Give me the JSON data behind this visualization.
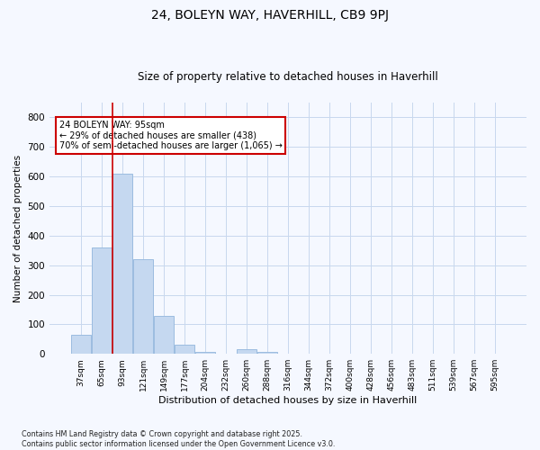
{
  "title": "24, BOLEYN WAY, HAVERHILL, CB9 9PJ",
  "subtitle": "Size of property relative to detached houses in Haverhill",
  "xlabel": "Distribution of detached houses by size in Haverhill",
  "ylabel": "Number of detached properties",
  "bar_color": "#c5d8f0",
  "bar_edge_color": "#9bbce0",
  "grid_color": "#c8d8ee",
  "background_color": "#f5f8ff",
  "plot_bg_color": "#f5f8ff",
  "vline_color": "#cc0000",
  "vline_x": 1.5,
  "categories": [
    "37sqm",
    "65sqm",
    "93sqm",
    "121sqm",
    "149sqm",
    "177sqm",
    "204sqm",
    "232sqm",
    "260sqm",
    "288sqm",
    "316sqm",
    "344sqm",
    "372sqm",
    "400sqm",
    "428sqm",
    "456sqm",
    "483sqm",
    "511sqm",
    "539sqm",
    "567sqm",
    "595sqm"
  ],
  "values": [
    65,
    360,
    610,
    320,
    130,
    30,
    8,
    0,
    15,
    8,
    0,
    0,
    0,
    0,
    0,
    0,
    0,
    0,
    0,
    0,
    0
  ],
  "ylim": [
    0,
    850
  ],
  "yticks": [
    0,
    100,
    200,
    300,
    400,
    500,
    600,
    700,
    800
  ],
  "annotation_text": "24 BOLEYN WAY: 95sqm\n← 29% of detached houses are smaller (438)\n70% of semi-detached houses are larger (1,065) →",
  "annotation_box_color": "#ffffff",
  "annotation_box_edge": "#cc0000",
  "footer_text": "Contains HM Land Registry data © Crown copyright and database right 2025.\nContains public sector information licensed under the Open Government Licence v3.0.",
  "figsize": [
    6.0,
    5.0
  ],
  "dpi": 100
}
